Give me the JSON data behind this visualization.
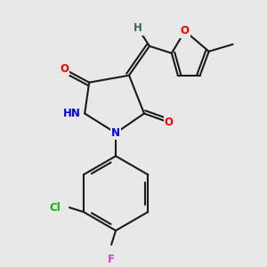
{
  "background_color": "#e8e8e8",
  "bond_color": "#1a1a1a",
  "atom_colors": {
    "O": "#ff0000",
    "N": "#0000ff",
    "Cl": "#00bb00",
    "F": "#cc44cc",
    "H": "#406060",
    "C": "#1a1a1a"
  },
  "figsize": [
    3.0,
    3.0
  ],
  "dpi": 100
}
